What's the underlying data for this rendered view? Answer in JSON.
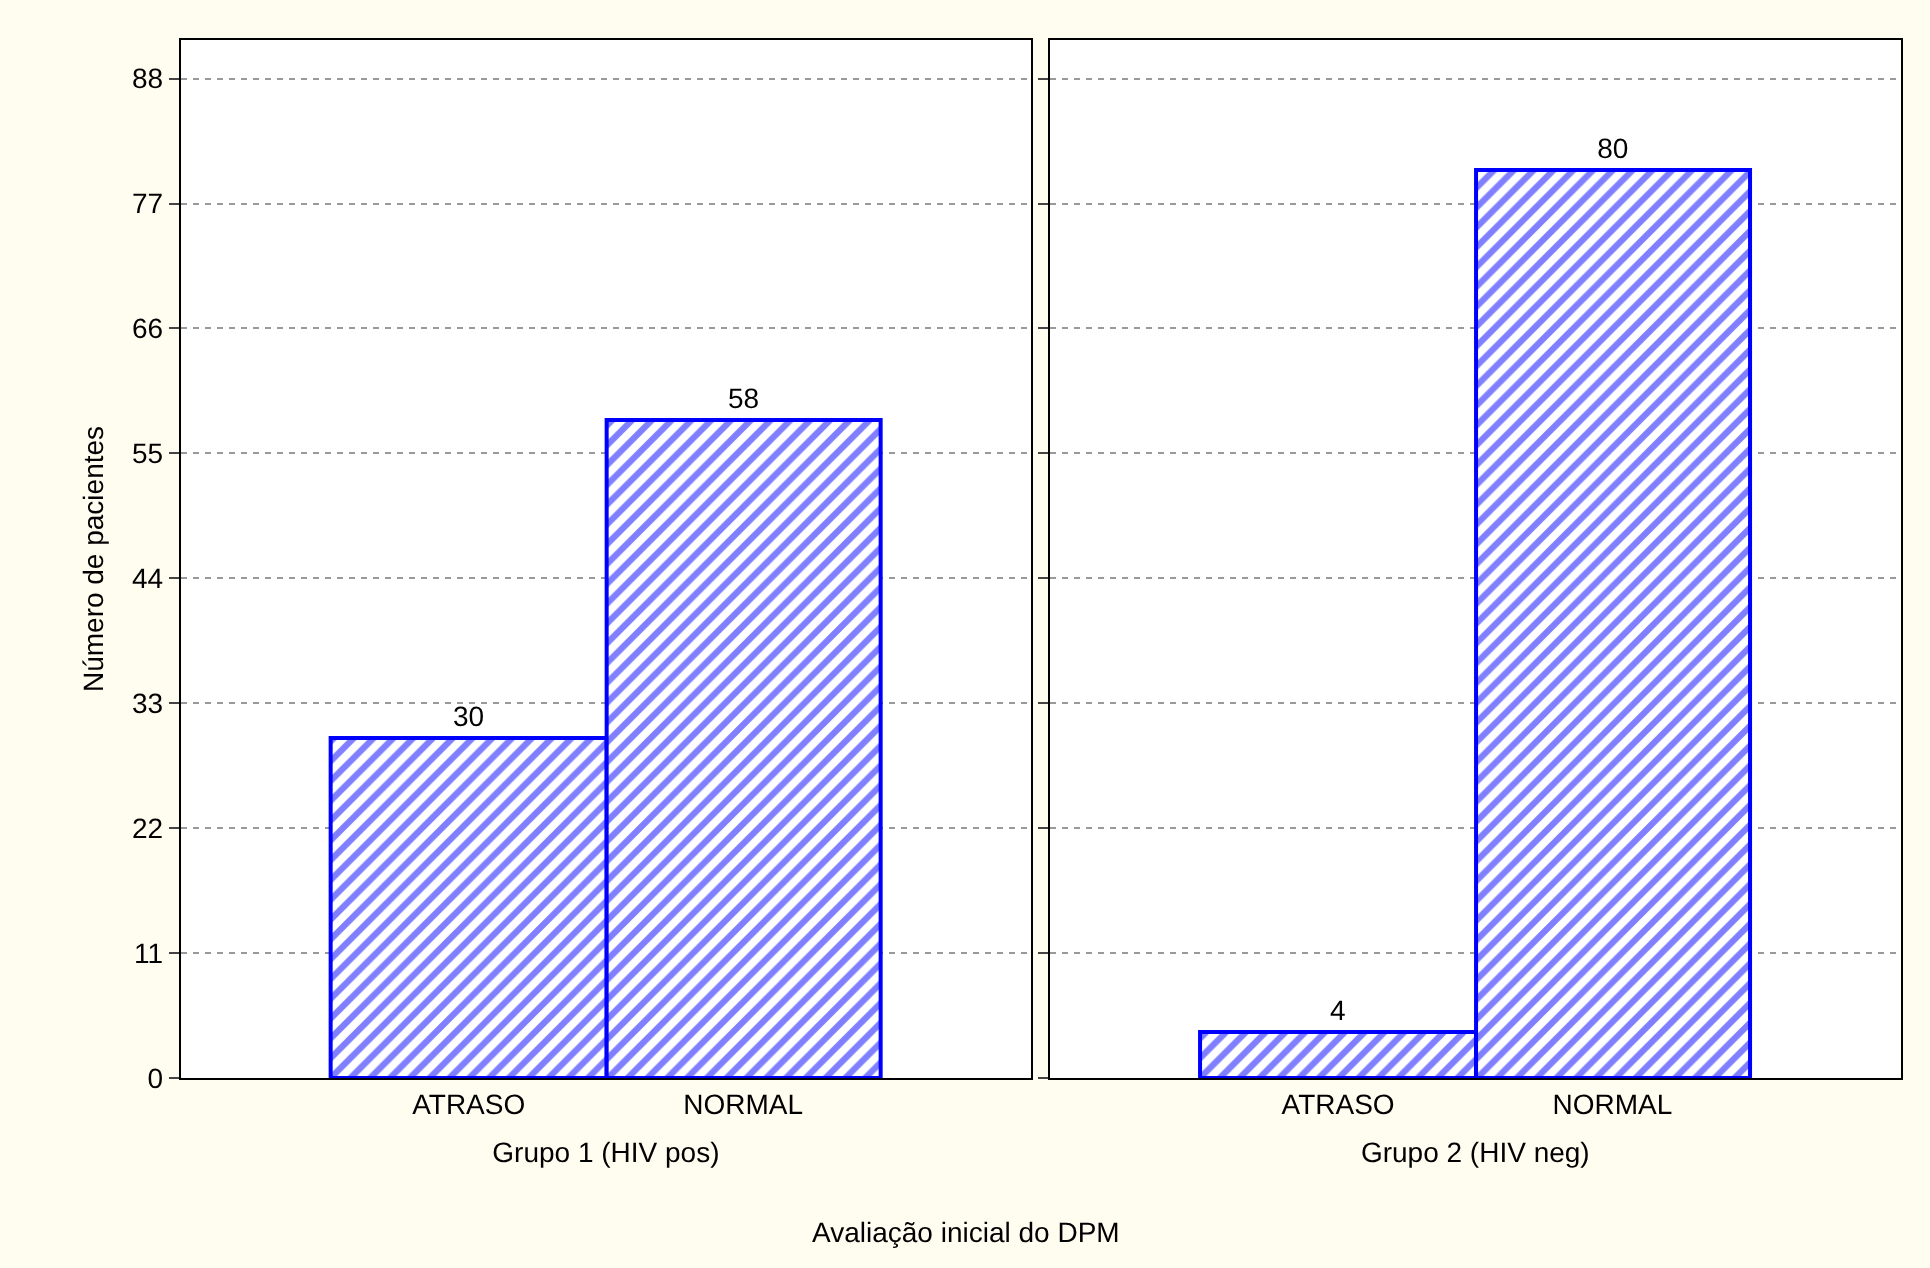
{
  "chart_data": [
    {
      "type": "bar",
      "categories": [
        "ATRASO",
        "NORMAL"
      ],
      "series": [
        {
          "color": "#0000ff",
          "values": [
            30,
            58
          ]
        }
      ],
      "xlabel": "Grupo 1 (HIV pos)",
      "ylabel": "Número de pacientes",
      "ylim": [
        0,
        91.4
      ],
      "yticks": [
        0,
        11,
        22,
        33,
        44,
        55,
        66,
        77,
        88
      ],
      "grid": "y",
      "data_labels": true,
      "annotations": [
        "Avaliação inicial do DPM"
      ]
    },
    {
      "type": "bar",
      "categories": [
        "ATRASO",
        "NORMAL"
      ],
      "series": [
        {
          "color": "#0000ff",
          "values": [
            4,
            80
          ]
        }
      ],
      "xlabel": "Grupo 2 (HIV neg)",
      "ylim": [
        0,
        91.4
      ],
      "yticks": [
        0,
        11,
        22,
        33,
        44,
        55,
        66,
        77,
        88
      ],
      "grid": "y",
      "data_labels": true,
      "tick_labels": "x"
    }
  ]
}
